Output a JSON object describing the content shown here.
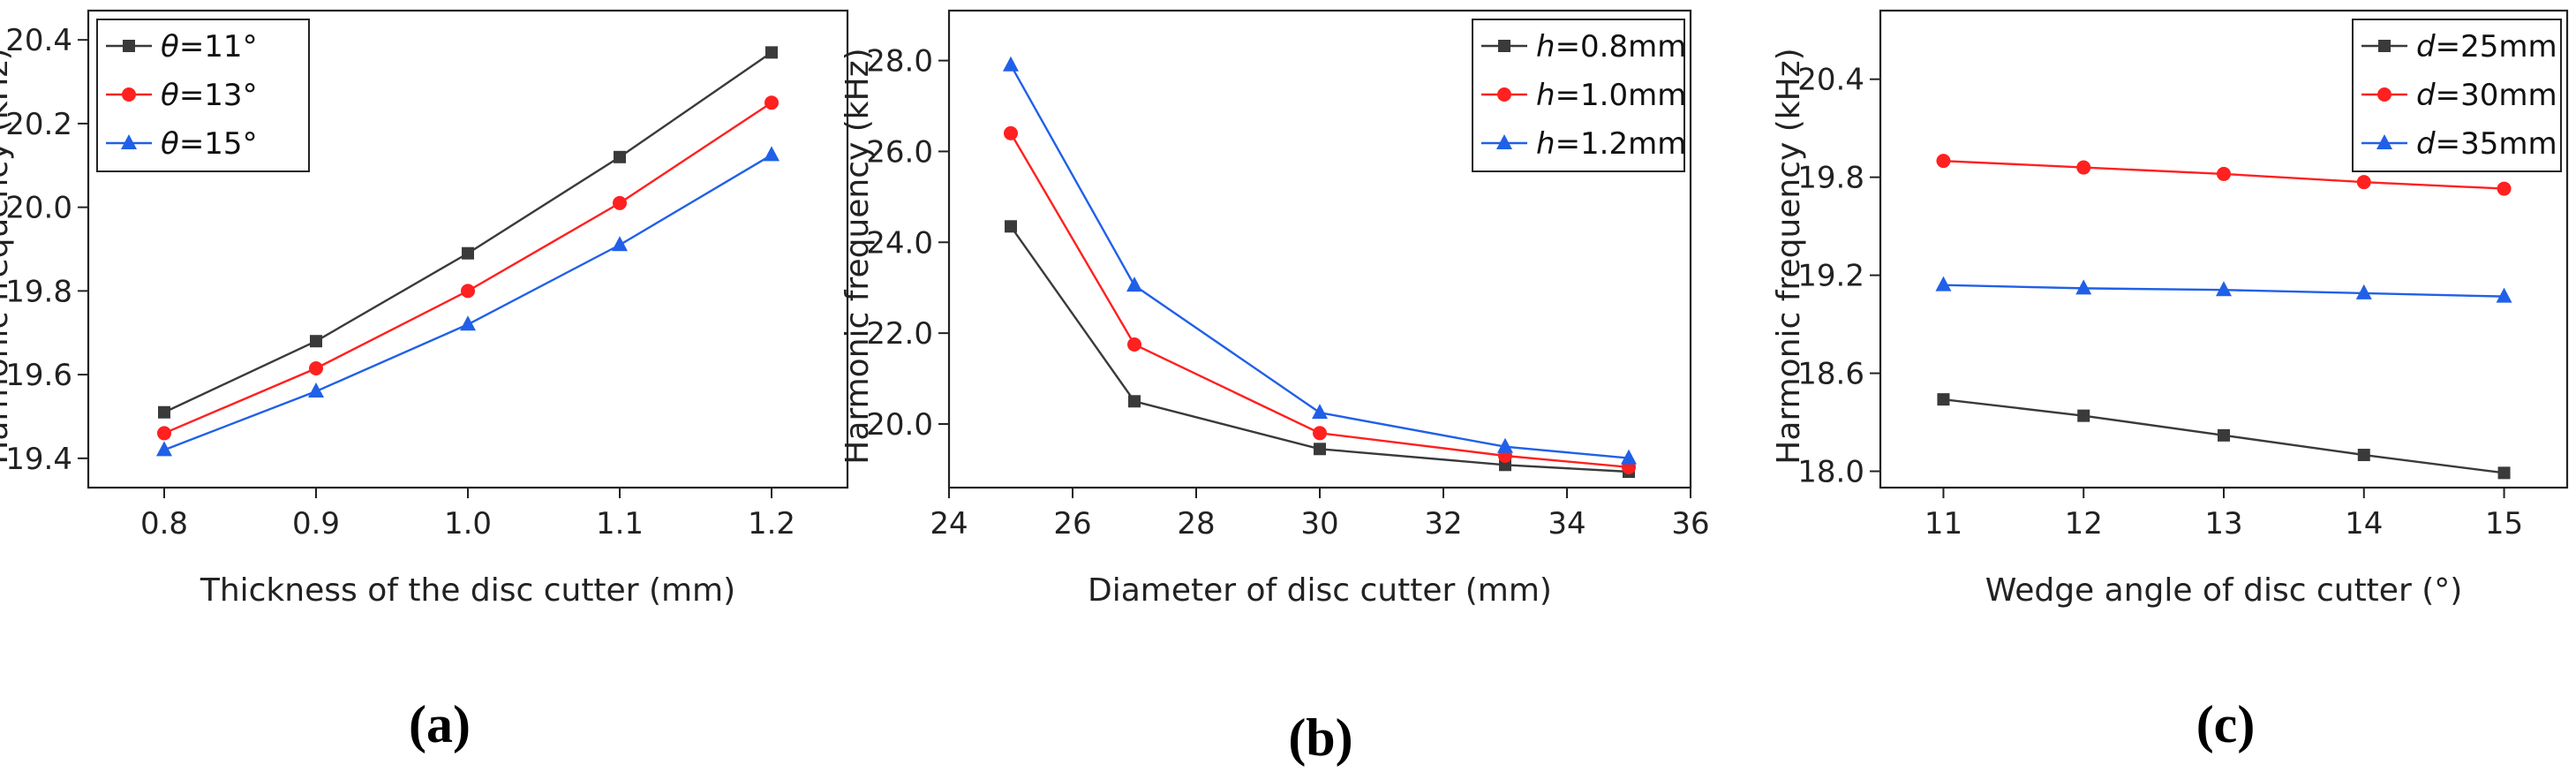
{
  "chart_data": [
    {
      "type": "line",
      "panel_label": "(a)",
      "xlabel": "Thickness of the disc cutter (mm)",
      "ylabel": "Harmonic frequency (kHz)",
      "xlim": [
        0.75,
        1.25
      ],
      "ylim": [
        19.33,
        20.47
      ],
      "x_ticks": [
        0.8,
        0.9,
        1.0,
        1.1,
        1.2
      ],
      "x_tick_labels": [
        "0.8",
        "0.9",
        "1.0",
        "1.1",
        "1.2"
      ],
      "y_ticks": [
        19.4,
        19.6,
        19.8,
        20.0,
        20.2,
        20.4
      ],
      "y_tick_labels": [
        "19.4",
        "19.6",
        "19.8",
        "20.0",
        "20.2",
        "20.4"
      ],
      "legend_position": "top-left",
      "x": [
        0.8,
        0.9,
        1.0,
        1.1,
        1.2
      ],
      "series": [
        {
          "name": "θ=11°",
          "var": "θ",
          "rest": "=11°",
          "color": "#3a3a3a",
          "marker": "square",
          "values": [
            19.51,
            19.68,
            19.89,
            20.12,
            20.37
          ]
        },
        {
          "name": "θ=13°",
          "var": "θ",
          "rest": "=13°",
          "color": "#ff2020",
          "marker": "circle",
          "values": [
            19.46,
            19.615,
            19.8,
            20.01,
            20.25
          ]
        },
        {
          "name": "θ=15°",
          "var": "θ",
          "rest": "=15°",
          "color": "#2060e8",
          "marker": "triangle",
          "values": [
            19.42,
            19.56,
            19.72,
            19.91,
            20.125
          ]
        }
      ]
    },
    {
      "type": "line",
      "panel_label": "(b)",
      "xlabel": "Diameter of disc cutter (mm)",
      "ylabel": "Harmonic frequency (kHz)",
      "xlim": [
        24,
        36
      ],
      "ylim": [
        18.6,
        29.1
      ],
      "x_ticks": [
        24,
        26,
        28,
        30,
        32,
        34,
        36
      ],
      "x_tick_labels": [
        "24",
        "26",
        "28",
        "30",
        "32",
        "34",
        "36"
      ],
      "y_ticks": [
        20,
        22,
        24,
        26,
        28
      ],
      "y_tick_labels": [
        "20.0",
        "22.0",
        "24.0",
        "26.0",
        "28.0"
      ],
      "legend_position": "top-right",
      "x": [
        25,
        27,
        30,
        33,
        35
      ],
      "series": [
        {
          "name": "h=0.8mm",
          "var": "h",
          "rest": "=0.8mm",
          "color": "#3a3a3a",
          "marker": "square",
          "values": [
            24.35,
            20.5,
            19.45,
            19.1,
            18.95
          ]
        },
        {
          "name": "h=1.0mm",
          "var": "h",
          "rest": "=1.0mm",
          "color": "#ff2020",
          "marker": "circle",
          "values": [
            26.4,
            21.75,
            19.8,
            19.3,
            19.05
          ]
        },
        {
          "name": "h=1.2mm",
          "var": "h",
          "rest": "=1.2mm",
          "color": "#2060e8",
          "marker": "triangle",
          "values": [
            27.9,
            23.05,
            20.25,
            19.5,
            19.25
          ]
        }
      ]
    },
    {
      "type": "line",
      "panel_label": "(c)",
      "xlabel": "Wedge angle of disc cutter (°)",
      "ylabel": "Harmonic frequency (kHz)",
      "xlim": [
        10.55,
        15.45
      ],
      "ylim": [
        17.9,
        20.82
      ],
      "x_ticks": [
        11,
        12,
        13,
        14,
        15
      ],
      "x_tick_labels": [
        "11",
        "12",
        "13",
        "14",
        "15"
      ],
      "y_ticks": [
        18.0,
        18.6,
        19.2,
        19.8,
        20.4
      ],
      "y_tick_labels": [
        "18.0",
        "18.6",
        "19.2",
        "19.8",
        "20.4"
      ],
      "legend_position": "top-right",
      "x": [
        11,
        12,
        13,
        14,
        15
      ],
      "series": [
        {
          "name": "d=25mm",
          "var": "d",
          "rest": "=25mm",
          "color": "#3a3a3a",
          "marker": "square",
          "values": [
            18.44,
            18.34,
            18.22,
            18.1,
            17.99
          ]
        },
        {
          "name": "d=30mm",
          "var": "d",
          "rest": "=30mm",
          "color": "#ff2020",
          "marker": "circle",
          "values": [
            19.9,
            19.86,
            19.82,
            19.77,
            19.73
          ]
        },
        {
          "name": "d=35mm",
          "var": "d",
          "rest": "=35mm",
          "color": "#2060e8",
          "marker": "triangle",
          "values": [
            19.14,
            19.12,
            19.11,
            19.09,
            19.07
          ]
        }
      ]
    }
  ]
}
